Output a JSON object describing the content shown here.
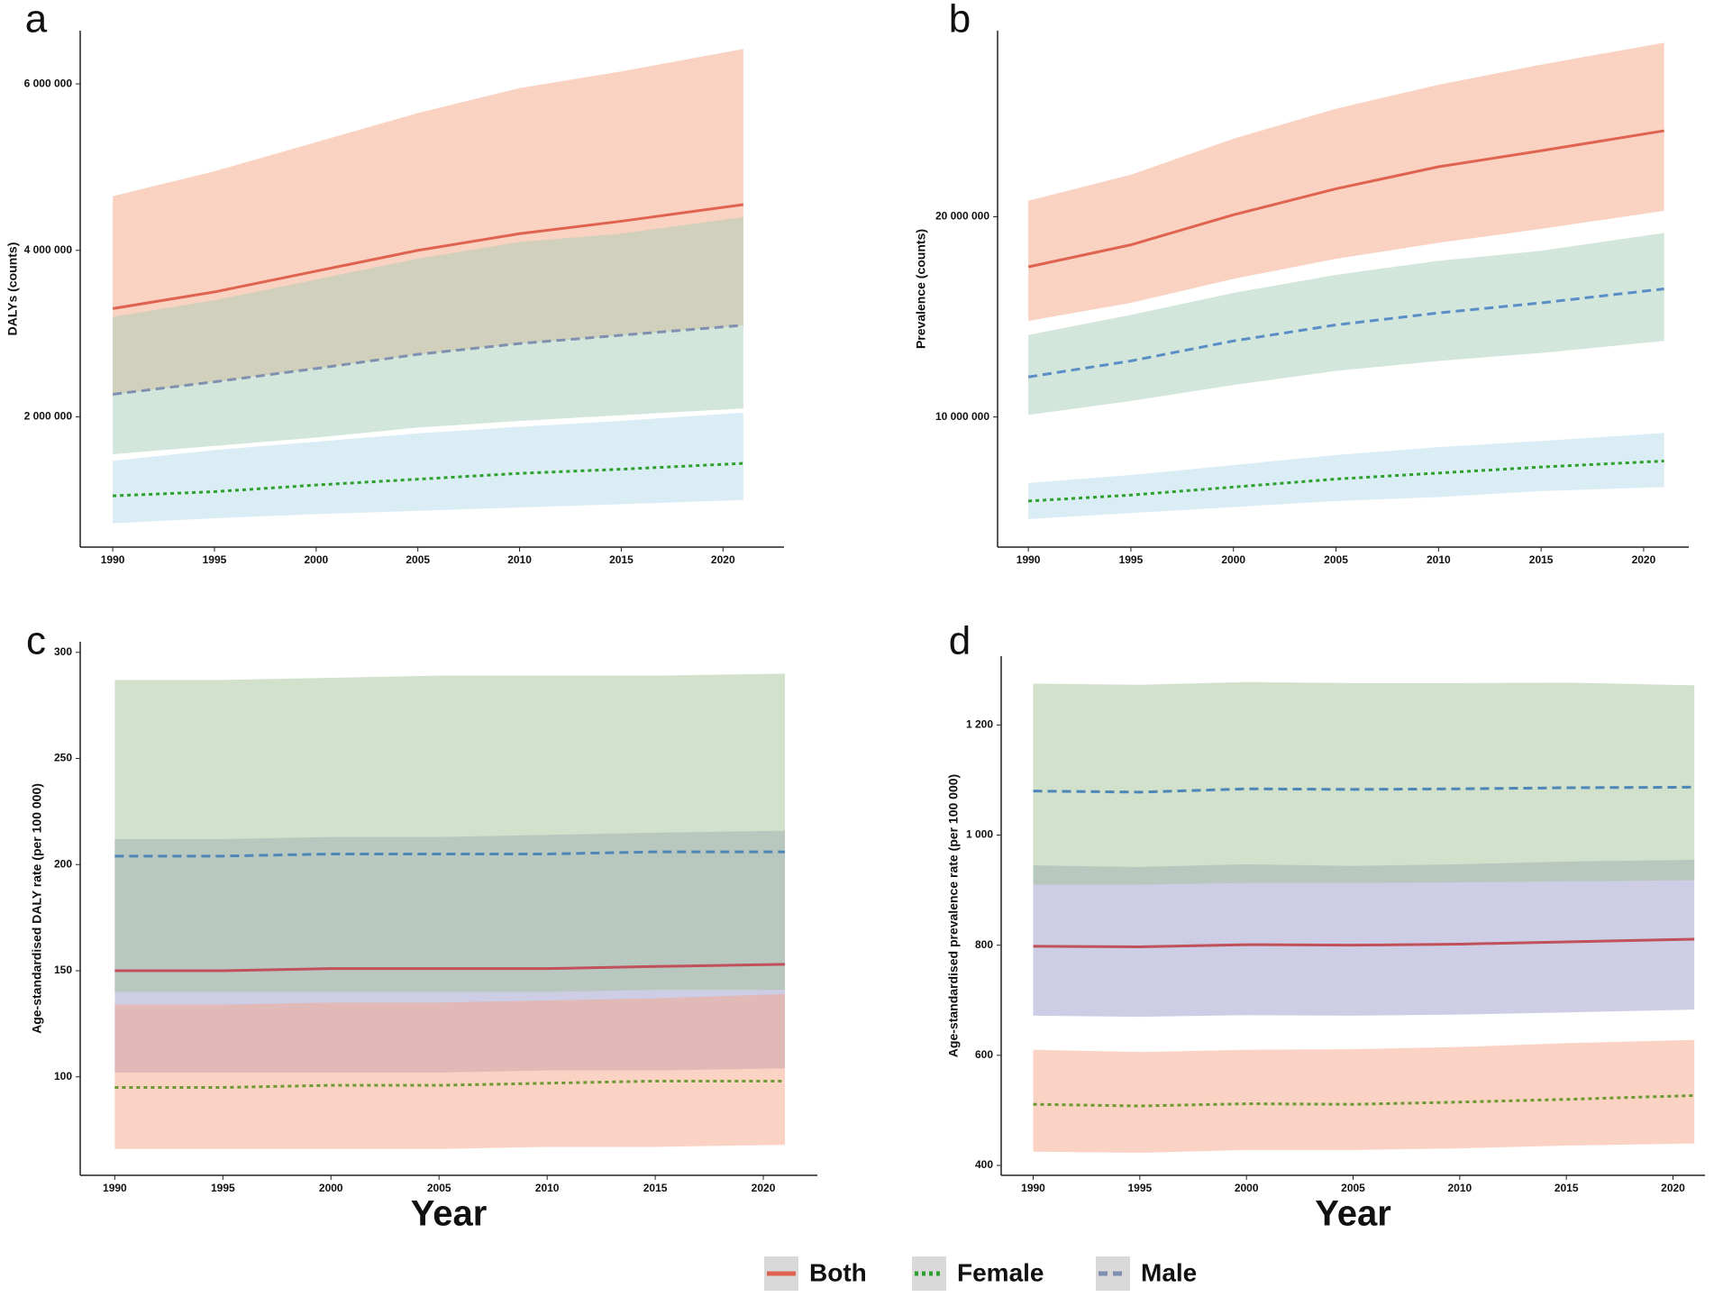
{
  "chart_data": [
    {
      "type": "line",
      "title": "a",
      "ylabel": "DALYs (counts)",
      "x": [
        1990,
        1995,
        2000,
        2005,
        2010,
        2015,
        2021
      ],
      "xlim": [
        1988.4,
        2023.0
      ],
      "xticks": [
        1990,
        1995,
        2000,
        2005,
        2010,
        2015,
        2020
      ],
      "ylim": [
        434000,
        6640000
      ],
      "yticks": [
        {
          "value": 2000000,
          "label": "2 000 000"
        },
        {
          "value": 4000000,
          "label": "4 000 000"
        },
        {
          "value": 6000000,
          "label": "6 000 000"
        }
      ],
      "series": [
        {
          "name": "Both",
          "color": "#e06350",
          "dash": "solid",
          "band_color": "#f5a583",
          "values": [
            3300000,
            3500000,
            3750000,
            4000000,
            4200000,
            4350000,
            4550000
          ],
          "lower": [
            2270000,
            2420000,
            2580000,
            2750000,
            2880000,
            2980000,
            3100000
          ],
          "upper": [
            4650000,
            4950000,
            5300000,
            5650000,
            5950000,
            6150000,
            6420000
          ]
        },
        {
          "name": "Female",
          "color": "#2ca02c",
          "dash": "dotted",
          "band_color": "#b5dbea",
          "values": [
            1050000,
            1100000,
            1180000,
            1250000,
            1320000,
            1370000,
            1440000
          ],
          "lower": [
            720000,
            780000,
            830000,
            870000,
            910000,
            950000,
            1000000
          ],
          "upper": [
            1470000,
            1600000,
            1700000,
            1800000,
            1880000,
            1950000,
            2050000
          ]
        },
        {
          "name": "Male",
          "color": "#8090b0",
          "dash": "dashed",
          "band_color": "#a6cdb8",
          "values": [
            2270000,
            2420000,
            2580000,
            2750000,
            2880000,
            2980000,
            3100000
          ],
          "lower": [
            1550000,
            1650000,
            1750000,
            1870000,
            1950000,
            2020000,
            2100000
          ],
          "upper": [
            3200000,
            3400000,
            3650000,
            3900000,
            4100000,
            4200000,
            4400000
          ]
        }
      ]
    },
    {
      "type": "line",
      "title": "b",
      "ylabel": "Prevalence (counts)",
      "x": [
        1990,
        1995,
        2000,
        2005,
        2010,
        2015,
        2021
      ],
      "xlim": [
        1988.5,
        2022.2
      ],
      "xticks": [
        1990,
        1995,
        2000,
        2005,
        2010,
        2015,
        2020
      ],
      "ylim": [
        3500000,
        29300000
      ],
      "yticks": [
        {
          "value": 10000000,
          "label": "10 000 000"
        },
        {
          "value": 20000000,
          "label": "20 000 000"
        }
      ],
      "series": [
        {
          "name": "Both",
          "color": "#e06350",
          "dash": "solid",
          "band_color": "#f5a583",
          "values": [
            17500000,
            18600000,
            20100000,
            21400000,
            22500000,
            23300000,
            24300000
          ],
          "lower": [
            14800000,
            15700000,
            16900000,
            17900000,
            18700000,
            19400000,
            20300000
          ],
          "upper": [
            20800000,
            22100000,
            23900000,
            25400000,
            26600000,
            27600000,
            28700000
          ]
        },
        {
          "name": "Female",
          "color": "#2ca02c",
          "dash": "dotted",
          "band_color": "#b5dbea",
          "values": [
            5800000,
            6100000,
            6500000,
            6900000,
            7200000,
            7500000,
            7800000
          ],
          "lower": [
            4900000,
            5200000,
            5500000,
            5800000,
            6000000,
            6300000,
            6500000
          ],
          "upper": [
            6700000,
            7100000,
            7600000,
            8100000,
            8500000,
            8800000,
            9200000
          ]
        },
        {
          "name": "Male",
          "color": "#5b8ec7",
          "dash": "dashed",
          "band_color": "#a6cdb8",
          "values": [
            12000000,
            12800000,
            13800000,
            14600000,
            15200000,
            15700000,
            16400000
          ],
          "lower": [
            10100000,
            10800000,
            11600000,
            12300000,
            12800000,
            13200000,
            13800000
          ],
          "upper": [
            14100000,
            15100000,
            16200000,
            17100000,
            17800000,
            18300000,
            19200000
          ]
        }
      ]
    },
    {
      "type": "line",
      "title": "c",
      "ylabel": "Age-standardised DALY rate (per 100 000)",
      "xlabel": "Year",
      "x": [
        1990,
        1995,
        2000,
        2005,
        2010,
        2015,
        2021
      ],
      "xlim": [
        1988.4,
        2022.5
      ],
      "xticks": [
        1990,
        1995,
        2000,
        2005,
        2010,
        2015,
        2020
      ],
      "ylim": [
        53.6,
        305
      ],
      "yticks": [
        100,
        150,
        200,
        250,
        300
      ],
      "series": [
        {
          "name": "Both",
          "color": "#c0505a",
          "dash": "solid",
          "band_color": "#9c9ccc",
          "values": [
            150,
            150,
            151,
            151,
            151,
            152,
            153
          ],
          "lower": [
            102,
            102,
            102,
            102,
            103,
            103,
            104
          ],
          "upper": [
            212,
            212,
            213,
            213,
            214,
            215,
            216
          ]
        },
        {
          "name": "Female",
          "color": "#6a9a30",
          "dash": "dotted",
          "band_color": "#f6a88a",
          "values": [
            95,
            95,
            96,
            96,
            97,
            98,
            98
          ],
          "lower": [
            66,
            66,
            66,
            66,
            67,
            67,
            68
          ],
          "upper": [
            134,
            134,
            135,
            135,
            136,
            137,
            139
          ]
        },
        {
          "name": "Male",
          "color": "#4f86b8",
          "dash": "dashed",
          "band_color": "#a3c49a",
          "values": [
            204,
            204,
            205,
            205,
            205,
            206,
            206
          ],
          "lower": [
            140,
            140,
            140,
            140,
            140,
            141,
            141
          ],
          "upper": [
            287,
            287,
            288,
            289,
            289,
            289,
            290
          ]
        }
      ]
    },
    {
      "type": "line",
      "title": "d",
      "ylabel": "Age-standardised prevalence rate (per 100 000)",
      "xlabel": "Year",
      "x": [
        1990,
        1995,
        2000,
        2005,
        2010,
        2015,
        2021
      ],
      "xlim": [
        1988.5,
        2021.5
      ],
      "xticks": [
        1990,
        1995,
        2000,
        2005,
        2010,
        2015,
        2020
      ],
      "ylim": [
        382,
        1325
      ],
      "yticks": [
        400,
        600,
        800,
        {
          "value": 1000,
          "label": "1 000"
        },
        {
          "value": 1200,
          "label": "1 200"
        }
      ],
      "series": [
        {
          "name": "Both",
          "color": "#c0505a",
          "dash": "solid",
          "band_color": "#9c9ccc",
          "values": [
            798,
            797,
            801,
            800,
            802,
            806,
            811
          ],
          "lower": [
            672,
            670,
            673,
            672,
            674,
            678,
            683
          ],
          "upper": [
            945,
            942,
            947,
            944,
            947,
            952,
            955
          ]
        },
        {
          "name": "Female",
          "color": "#6a9a30",
          "dash": "dotted",
          "band_color": "#f6a88a",
          "values": [
            511,
            508,
            512,
            511,
            515,
            520,
            527
          ],
          "lower": [
            425,
            423,
            428,
            428,
            431,
            436,
            440
          ],
          "upper": [
            610,
            606,
            610,
            611,
            615,
            622,
            628
          ]
        },
        {
          "name": "Male",
          "color": "#4f86b8",
          "dash": "dashed",
          "band_color": "#a3c49a",
          "values": [
            1080,
            1078,
            1084,
            1083,
            1084,
            1086,
            1087
          ],
          "lower": [
            910,
            910,
            913,
            913,
            914,
            916,
            918
          ],
          "upper": [
            1275,
            1273,
            1278,
            1276,
            1276,
            1277,
            1272
          ]
        }
      ]
    }
  ]
}
